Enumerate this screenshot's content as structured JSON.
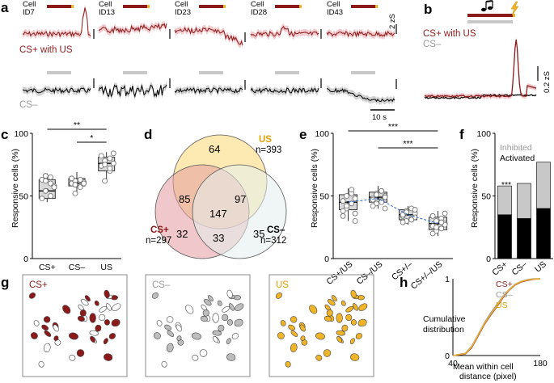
{
  "colors": {
    "cs_plus": "#8b1a1a",
    "cs_minus": "#9a9a9a",
    "us": "#f0b429",
    "venn_us_fill": "#fbe6a5",
    "venn_cs_plus_fill": "#e39aa0",
    "venn_cs_minus_fill": "#e3eeee",
    "trace_cs_minus": "#000000",
    "blue_link": "#2b6cd6"
  },
  "panel_labels": {
    "a": "a",
    "b": "b",
    "c": "c",
    "d": "d",
    "e": "e",
    "f": "f",
    "g": "g",
    "h": "h"
  },
  "panel_a": {
    "cells": [
      {
        "line1": "Cell",
        "line2": "ID7"
      },
      {
        "line1": "Cell",
        "line2": "ID13"
      },
      {
        "line1": "Cell",
        "line2": "ID23"
      },
      {
        "line1": "Cell",
        "line2": "ID28"
      },
      {
        "line1": "Cell",
        "line2": "ID43"
      }
    ],
    "row_cs_plus_label": "CS+ with US",
    "row_cs_minus_label": "CS–",
    "scale_y": "2 zS",
    "scale_x": "10 s"
  },
  "panel_b": {
    "label_cs_plus": "CS+ with US",
    "label_cs_minus": "CS–",
    "scale_y": "0.2 zS",
    "tone_icon": "music-note-icon",
    "shock_icon": "lightning-icon"
  },
  "chart_data": [
    {
      "panel": "c",
      "type": "box",
      "ylabel": "Responsive cells (%)",
      "categories": [
        "CS+",
        "CS–",
        "US"
      ],
      "ylim": [
        0,
        100
      ],
      "yticks": [
        0,
        50,
        100
      ],
      "boxes": [
        {
          "q1": 48,
          "median": 54,
          "q3": 63,
          "mean": 55,
          "whisker_low": 45,
          "whisker_high": 68
        },
        {
          "q1": 58,
          "median": 60,
          "q3": 64,
          "mean": 61,
          "whisker_low": 52,
          "whisker_high": 69
        },
        {
          "q1": 70,
          "median": 76,
          "q3": 81,
          "mean": 75,
          "whisker_low": 62,
          "whisker_high": 85
        }
      ],
      "points": [
        [
          54,
          60,
          63,
          58,
          66,
          50,
          48,
          57,
          62,
          65
        ],
        [
          52,
          58,
          60,
          61,
          62,
          63,
          64,
          60,
          59,
          57
        ],
        [
          62,
          70,
          74,
          76,
          78,
          80,
          82,
          84,
          75,
          72
        ]
      ],
      "significance": [
        {
          "pair": [
            "CS+",
            "US"
          ],
          "label": "**"
        },
        {
          "pair": [
            "CS–",
            "US"
          ],
          "label": "*"
        }
      ]
    },
    {
      "panel": "d",
      "type": "venn",
      "sets": [
        {
          "name": "US",
          "total": "n=393"
        },
        {
          "name": "CS+",
          "total": "n=297"
        },
        {
          "name": "CS–",
          "total": "n=312"
        }
      ],
      "regions": {
        "us_only": 64,
        "cs_plus_only": 32,
        "cs_minus_only": 35,
        "us_cs_plus": 85,
        "us_cs_minus": 97,
        "cs_plus_cs_minus": 33,
        "all_three": 147
      }
    },
    {
      "panel": "e",
      "type": "box",
      "ylabel": "Responsive cells (%)",
      "categories": [
        "CS+/US",
        "CS–/US",
        "CS+/–",
        "CS+/–/US"
      ],
      "ylim": [
        0,
        100
      ],
      "yticks": [
        0,
        50,
        100
      ],
      "boxes": [
        {
          "q1": 39,
          "median": 45,
          "q3": 51,
          "mean": 45,
          "whisker_low": 30,
          "whisker_high": 56
        },
        {
          "q1": 45,
          "median": 49,
          "q3": 53,
          "mean": 48,
          "whisker_low": 40,
          "whisker_high": 58
        },
        {
          "q1": 31,
          "median": 35,
          "q3": 39,
          "mean": 35,
          "whisker_low": 27,
          "whisker_high": 42
        },
        {
          "q1": 23,
          "median": 28,
          "q3": 33,
          "mean": 28,
          "whisker_low": 18,
          "whisker_high": 38
        }
      ],
      "points": [
        [
          40,
          44,
          46,
          48,
          50,
          52,
          38,
          36,
          42,
          55,
          34,
          30
        ],
        [
          44,
          46,
          48,
          50,
          52,
          54,
          47,
          49,
          51,
          45,
          42,
          40
        ],
        [
          30,
          32,
          34,
          36,
          38,
          40,
          35,
          33,
          37,
          31,
          29,
          39
        ],
        [
          22,
          24,
          26,
          28,
          30,
          32,
          34,
          27,
          25,
          29,
          20,
          36
        ]
      ],
      "significance": [
        {
          "pair": [
            "CS+/US",
            "CS+/–/US"
          ],
          "label": "***"
        },
        {
          "pair": [
            "CS–/US",
            "CS+/–/US"
          ],
          "label": "***"
        }
      ]
    },
    {
      "panel": "f",
      "type": "bar",
      "stacked": true,
      "ylabel": "Responsive cells (%)",
      "categories": [
        "CS+",
        "CS–",
        "US"
      ],
      "ylim": [
        0,
        100
      ],
      "yticks": [
        0,
        50,
        100
      ],
      "series": [
        {
          "name": "Activated",
          "values": [
            35,
            32,
            40
          ],
          "color": "#000000"
        },
        {
          "name": "Inhibited",
          "values": [
            23,
            28,
            37
          ],
          "color": "#c8c8c8"
        }
      ],
      "annotation": "***",
      "legend_placement": "top"
    },
    {
      "panel": "h",
      "type": "line",
      "xlabel": "Mean within cell distance (pixel)",
      "ylabel": "Cumulative distribution",
      "xlim": [
        40,
        180
      ],
      "ylim": [
        0,
        1
      ],
      "xticks": [
        40,
        180
      ],
      "yticks": [
        0,
        1
      ],
      "series": [
        {
          "name": "CS+",
          "x": [
            40,
            60,
            70,
            80,
            90,
            100,
            110,
            120,
            130,
            140,
            150,
            160,
            170,
            180
          ],
          "y": [
            0,
            0.02,
            0.1,
            0.25,
            0.4,
            0.52,
            0.63,
            0.75,
            0.85,
            0.92,
            0.96,
            0.98,
            0.995,
            1
          ]
        },
        {
          "name": "CS–",
          "x": [
            40,
            60,
            70,
            80,
            90,
            100,
            110,
            120,
            130,
            140,
            150,
            160,
            170,
            180
          ],
          "y": [
            0,
            0.03,
            0.12,
            0.27,
            0.42,
            0.55,
            0.66,
            0.77,
            0.86,
            0.93,
            0.97,
            0.99,
            1,
            1
          ]
        },
        {
          "name": "US",
          "x": [
            40,
            60,
            70,
            80,
            90,
            100,
            110,
            120,
            130,
            140,
            150,
            160,
            170,
            180
          ],
          "y": [
            0,
            0.025,
            0.11,
            0.26,
            0.41,
            0.53,
            0.64,
            0.76,
            0.855,
            0.925,
            0.965,
            0.985,
            0.997,
            1
          ]
        }
      ]
    }
  ],
  "panel_g": {
    "maps": [
      {
        "label": "CS+"
      },
      {
        "label": "CS–"
      },
      {
        "label": "US"
      }
    ]
  }
}
